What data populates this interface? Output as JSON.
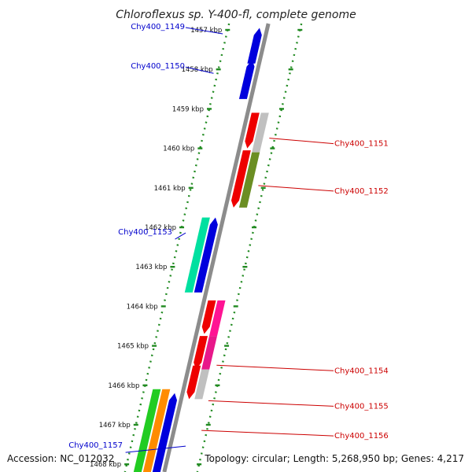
{
  "title": "Chloroflexus sp. Y-400-fl, complete genome",
  "footer": {
    "accession": "Accession: NC_012032",
    "summary": "Topology: circular; Length: 5,268,950 bp; Genes: 4,217"
  },
  "colors": {
    "backbone": "#8c8c8c",
    "tick": "#228b22",
    "label_left": "#0000cc",
    "label_right": "#cc0000"
  },
  "ticks": [
    {
      "kbp": 1457,
      "label": "1457 kbp"
    },
    {
      "kbp": 1458,
      "label": "1458 kbp"
    },
    {
      "kbp": 1459,
      "label": "1459 kbp"
    },
    {
      "kbp": 1460,
      "label": "1460 kbp"
    },
    {
      "kbp": 1461,
      "label": "1461 kbp"
    },
    {
      "kbp": 1462,
      "label": "1462 kbp"
    },
    {
      "kbp": 1463,
      "label": "1463 kbp"
    },
    {
      "kbp": 1464,
      "label": "1464 kbp"
    },
    {
      "kbp": 1465,
      "label": "1465 kbp"
    },
    {
      "kbp": 1466,
      "label": "1466 kbp"
    },
    {
      "kbp": 1467,
      "label": "1467 kbp"
    },
    {
      "kbp": 1468,
      "label": "1468 kbp"
    }
  ],
  "genes": [
    {
      "strand": "left",
      "lane": 1,
      "start": 1456.95,
      "end": 1457.85,
      "color": "#0000dd",
      "arrow": "up"
    },
    {
      "strand": "left",
      "lane": 1,
      "start": 1457.75,
      "end": 1458.75,
      "color": "#0000dd",
      "arrow": "up"
    },
    {
      "strand": "right",
      "lane": 1,
      "start": 1459.1,
      "end": 1460.0,
      "color": "#ee0000",
      "arrow": "down"
    },
    {
      "strand": "right",
      "lane": 2,
      "start": 1459.1,
      "end": 1460.1,
      "color": "#c0c0c0",
      "arrow": "none"
    },
    {
      "strand": "right",
      "lane": 1,
      "start": 1460.05,
      "end": 1461.5,
      "color": "#ee0000",
      "arrow": "down"
    },
    {
      "strand": "right",
      "lane": 2,
      "start": 1460.1,
      "end": 1461.5,
      "color": "#6b8e23",
      "arrow": "none"
    },
    {
      "strand": "left",
      "lane": 2,
      "start": 1461.75,
      "end": 1463.65,
      "color": "#00e0a0",
      "arrow": "none"
    },
    {
      "strand": "left",
      "lane": 1,
      "start": 1461.75,
      "end": 1463.65,
      "color": "#0000dd",
      "arrow": "up"
    },
    {
      "strand": "right",
      "lane": 1,
      "start": 1463.85,
      "end": 1464.7,
      "color": "#ee0000",
      "arrow": "down"
    },
    {
      "strand": "right",
      "lane": 2,
      "start": 1463.85,
      "end": 1464.75,
      "color": "#ff1493",
      "arrow": "none"
    },
    {
      "strand": "right",
      "lane": 1,
      "start": 1464.75,
      "end": 1465.6,
      "color": "#ee0000",
      "arrow": "down"
    },
    {
      "strand": "right",
      "lane": 2,
      "start": 1464.75,
      "end": 1465.6,
      "color": "#e8188a",
      "arrow": "none"
    },
    {
      "strand": "right",
      "lane": 1,
      "start": 1465.5,
      "end": 1466.35,
      "color": "#ee0000",
      "arrow": "down"
    },
    {
      "strand": "right",
      "lane": 2,
      "start": 1465.6,
      "end": 1466.35,
      "color": "#c0c0c0",
      "arrow": "none"
    },
    {
      "strand": "left",
      "lane": 3,
      "start": 1466.1,
      "end": 1468.3,
      "color": "#22cc22",
      "arrow": "none"
    },
    {
      "strand": "left",
      "lane": 2,
      "start": 1466.1,
      "end": 1468.3,
      "color": "#ff8c00",
      "arrow": "none"
    },
    {
      "strand": "left",
      "lane": 1,
      "start": 1466.2,
      "end": 1468.3,
      "color": "#0000dd",
      "arrow": "up"
    }
  ],
  "labels": [
    {
      "text": "Chy400_1149",
      "side": "left",
      "kbp": 1457.1
    },
    {
      "text": "Chy400_1150",
      "side": "left",
      "kbp": 1458.1
    },
    {
      "text": "Chy400_1151",
      "side": "right",
      "kbp": 1460.0
    },
    {
      "text": "Chy400_1152",
      "side": "right",
      "kbp": 1461.2
    },
    {
      "text": "Chy400_1153",
      "side": "left",
      "kbp": 1462.3
    },
    {
      "text": "Chy400_1154",
      "side": "right",
      "kbp": 1465.75
    },
    {
      "text": "Chy400_1155",
      "side": "right",
      "kbp": 1466.65
    },
    {
      "text": "Chy400_1156",
      "side": "right",
      "kbp": 1467.4
    },
    {
      "text": "Chy400_1157",
      "side": "left",
      "kbp": 1467.7
    }
  ]
}
